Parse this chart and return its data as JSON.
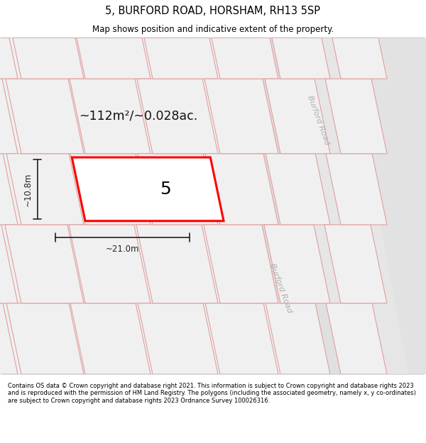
{
  "title": "5, BURFORD ROAD, HORSHAM, RH13 5SP",
  "subtitle": "Map shows position and indicative extent of the property.",
  "footer": "Contains OS data © Crown copyright and database right 2021. This information is subject to Crown copyright and database rights 2023 and is reproduced with the permission of HM Land Registry. The polygons (including the associated geometry, namely x, y co-ordinates) are subject to Crown copyright and database rights 2023 Ordnance Survey 100026316.",
  "area_label": "~112m²/~0.028ac.",
  "width_label": "~21.0m",
  "height_label": "~10.8m",
  "number_label": "5",
  "bg_color": "#f0f0f0",
  "plot_fill": "#f0f0f0",
  "plot_edge": "#e0a0a0",
  "highlight_fill": "#ffffff",
  "highlight_edge": "#ff0000",
  "road_fill_light": "#e8e8e8",
  "road_fill_dark": "#dcdcdc",
  "road_label_color": "#b0b0b0",
  "dim_color": "#222222",
  "text_color": "#111111"
}
